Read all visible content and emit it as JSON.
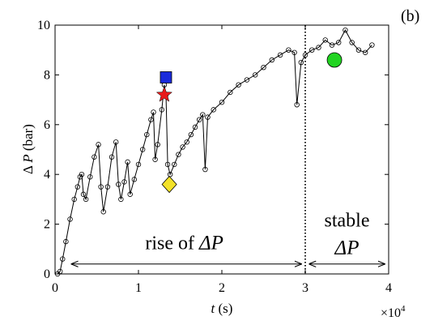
{
  "chart_data": {
    "type": "line",
    "panel_label": "(b)",
    "xlabel": {
      "italic": "t",
      "rest": " (s)"
    },
    "ylabel": {
      "prefix": "Δ ",
      "italic": "P",
      "rest": " (bar)"
    },
    "x_multiplier": {
      "base": "×10",
      "exp": "4"
    },
    "xlim": [
      0,
      40000
    ],
    "ylim": [
      0,
      10
    ],
    "x_ticks": [
      {
        "value": 0,
        "label": "0"
      },
      {
        "value": 10000,
        "label": "1"
      },
      {
        "value": 20000,
        "label": "2"
      },
      {
        "value": 30000,
        "label": "3"
      },
      {
        "value": 40000,
        "label": "4"
      }
    ],
    "y_ticks": [
      {
        "value": 0,
        "label": "0"
      },
      {
        "value": 2,
        "label": "2"
      },
      {
        "value": 4,
        "label": "4"
      },
      {
        "value": 6,
        "label": "6"
      },
      {
        "value": 8,
        "label": "8"
      },
      {
        "value": 10,
        "label": "10"
      }
    ],
    "grid": false,
    "series": [
      {
        "line_color": "#000000",
        "marker": "open-circle",
        "points": [
          [
            300,
            0.0
          ],
          [
            600,
            0.1
          ],
          [
            900,
            0.6
          ],
          [
            1300,
            1.3
          ],
          [
            1800,
            2.2
          ],
          [
            2300,
            3.0
          ],
          [
            2700,
            3.5
          ],
          [
            3000,
            3.9
          ],
          [
            3200,
            4.0
          ],
          [
            3400,
            3.2
          ],
          [
            3700,
            3.0
          ],
          [
            4200,
            3.9
          ],
          [
            4700,
            4.7
          ],
          [
            5200,
            5.2
          ],
          [
            5500,
            3.5
          ],
          [
            5800,
            2.5
          ],
          [
            6300,
            3.5
          ],
          [
            6800,
            4.7
          ],
          [
            7300,
            5.3
          ],
          [
            7600,
            3.6
          ],
          [
            7900,
            3.0
          ],
          [
            8300,
            3.7
          ],
          [
            8700,
            4.5
          ],
          [
            9000,
            3.2
          ],
          [
            9500,
            3.8
          ],
          [
            10000,
            4.4
          ],
          [
            10500,
            5.0
          ],
          [
            11000,
            5.6
          ],
          [
            11500,
            6.2
          ],
          [
            11800,
            6.5
          ],
          [
            12000,
            4.6
          ],
          [
            12300,
            5.2
          ],
          [
            12800,
            6.6
          ],
          [
            13100,
            7.6
          ],
          [
            13300,
            7.2
          ],
          [
            13500,
            4.4
          ],
          [
            13800,
            4.0
          ],
          [
            14300,
            4.4
          ],
          [
            14800,
            4.8
          ],
          [
            15300,
            5.1
          ],
          [
            15800,
            5.3
          ],
          [
            16300,
            5.6
          ],
          [
            16800,
            5.9
          ],
          [
            17300,
            6.2
          ],
          [
            17700,
            6.4
          ],
          [
            18000,
            4.2
          ],
          [
            18300,
            6.3
          ],
          [
            19000,
            6.6
          ],
          [
            20000,
            6.9
          ],
          [
            21000,
            7.3
          ],
          [
            22000,
            7.6
          ],
          [
            23000,
            7.8
          ],
          [
            24000,
            8.0
          ],
          [
            25000,
            8.3
          ],
          [
            26000,
            8.6
          ],
          [
            27000,
            8.8
          ],
          [
            28000,
            9.0
          ],
          [
            28700,
            8.9
          ],
          [
            29000,
            6.8
          ],
          [
            29500,
            8.5
          ],
          [
            30000,
            8.8
          ],
          [
            30800,
            9.0
          ],
          [
            31600,
            9.1
          ],
          [
            32400,
            9.4
          ],
          [
            33200,
            9.2
          ],
          [
            34000,
            9.3
          ],
          [
            34800,
            9.8
          ],
          [
            35600,
            9.3
          ],
          [
            36400,
            9.0
          ],
          [
            37200,
            8.9
          ],
          [
            38000,
            9.2
          ]
        ]
      }
    ],
    "highlight_markers": [
      {
        "shape": "square",
        "x": 13300,
        "y": 7.9,
        "color": "#1a2bdb"
      },
      {
        "shape": "star",
        "x": 13100,
        "y": 7.2,
        "color": "#e81b1b"
      },
      {
        "shape": "diamond",
        "x": 13700,
        "y": 3.6,
        "color": "#f3e22a"
      },
      {
        "shape": "circle",
        "x": 33500,
        "y": 8.6,
        "color": "#22d422"
      }
    ],
    "vline": {
      "x": 30000,
      "style": "dotted"
    },
    "annotations": {
      "rise": {
        "text": "rise of ",
        "sym": "ΔP",
        "x_start": 2000,
        "x_end": 29500,
        "y": 0.4,
        "text_x": 15500,
        "text_y": 1.0
      },
      "stable": {
        "line1": "stable",
        "sym": "ΔP",
        "x_start": 30500,
        "x_end": 39500,
        "y": 0.4,
        "text_x": 35000,
        "text_y": 1.9
      }
    }
  }
}
